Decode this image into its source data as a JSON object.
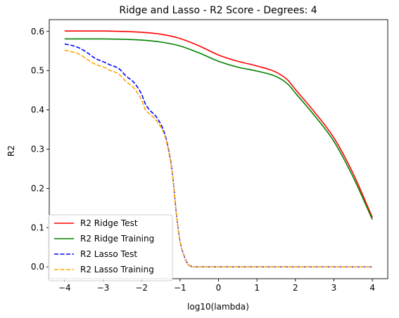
{
  "chart_data": {
    "type": "line",
    "title": "Ridge and Lasso - R2 Score - Degrees: 4",
    "xlabel": "log10(lambda)",
    "ylabel": "R2",
    "xlim": [
      -4.4,
      4.4
    ],
    "ylim": [
      -0.03,
      0.63
    ],
    "xticks": [
      -4,
      -3,
      -2,
      -1,
      0,
      1,
      2,
      3,
      4
    ],
    "yticks": [
      0.0,
      0.1,
      0.2,
      0.3,
      0.4,
      0.5,
      0.6
    ],
    "grid": false,
    "legend_position": "lower-left",
    "series": [
      {
        "name": "R2 Ridge Test",
        "color": "#ff0000",
        "style": "solid",
        "x": [
          -4,
          -3.5,
          -3,
          -2.5,
          -2,
          -1.5,
          -1,
          -0.5,
          0,
          0.5,
          1,
          1.5,
          1.8,
          2,
          2.5,
          3,
          3.5,
          4
        ],
        "y": [
          0.601,
          0.601,
          0.601,
          0.6,
          0.598,
          0.593,
          0.582,
          0.563,
          0.54,
          0.524,
          0.512,
          0.496,
          0.476,
          0.452,
          0.394,
          0.329,
          0.238,
          0.126
        ]
      },
      {
        "name": "R2 Ridge Training",
        "color": "#008000",
        "style": "solid",
        "x": [
          -4,
          -3.5,
          -3,
          -2.5,
          -2,
          -1.5,
          -1,
          -0.5,
          0,
          0.5,
          1,
          1.5,
          1.8,
          2,
          2.5,
          3,
          3.5,
          4
        ],
        "y": [
          0.581,
          0.581,
          0.581,
          0.58,
          0.578,
          0.573,
          0.563,
          0.545,
          0.524,
          0.509,
          0.499,
          0.485,
          0.466,
          0.443,
          0.385,
          0.32,
          0.229,
          0.121
        ]
      },
      {
        "name": "R2 Lasso Test",
        "color": "#0000ff",
        "style": "dashed",
        "x": [
          -4,
          -3.8,
          -3.6,
          -3.4,
          -3.2,
          -3.0,
          -2.8,
          -2.6,
          -2.4,
          -2.2,
          -2.0,
          -1.9,
          -1.8,
          -1.6,
          -1.4,
          -1.3,
          -1.2,
          -1.1,
          -1.0,
          -0.9,
          -0.8,
          -0.7,
          -0.6,
          -0.5,
          0,
          1,
          2,
          3,
          4
        ],
        "y": [
          0.568,
          0.564,
          0.557,
          0.545,
          0.531,
          0.523,
          0.514,
          0.506,
          0.486,
          0.47,
          0.44,
          0.415,
          0.401,
          0.38,
          0.34,
          0.3,
          0.24,
          0.14,
          0.065,
          0.03,
          0.008,
          0.001,
          0.0,
          0.0,
          0.0,
          0.0,
          0.0,
          0.0,
          0.0
        ]
      },
      {
        "name": "R2 Lasso Training",
        "color": "#ffa500",
        "style": "dashed",
        "x": [
          -4,
          -3.8,
          -3.6,
          -3.4,
          -3.2,
          -3.0,
          -2.8,
          -2.6,
          -2.4,
          -2.2,
          -2.0,
          -1.9,
          -1.8,
          -1.6,
          -1.4,
          -1.3,
          -1.2,
          -1.1,
          -1.0,
          -0.9,
          -0.8,
          -0.7,
          -0.6,
          -0.5,
          0,
          1,
          2,
          3,
          4
        ],
        "y": [
          0.552,
          0.548,
          0.541,
          0.528,
          0.516,
          0.51,
          0.5,
          0.492,
          0.472,
          0.456,
          0.425,
          0.4,
          0.391,
          0.371,
          0.335,
          0.296,
          0.237,
          0.138,
          0.064,
          0.029,
          0.007,
          0.001,
          0.0,
          0.0,
          0.0,
          0.0,
          0.0,
          0.0,
          0.0
        ]
      }
    ]
  }
}
